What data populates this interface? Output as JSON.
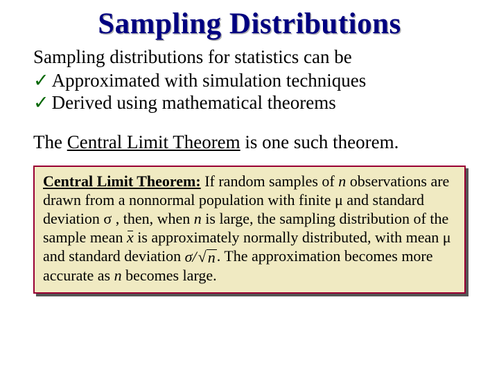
{
  "title": "Sampling Distributions",
  "intro": "Sampling distributions for statistics can be",
  "bullets": [
    {
      "text": "Approximated with simulation techniques"
    },
    {
      "text": "Derived using mathematical theorems"
    }
  ],
  "para_prefix": "The ",
  "para_underlined": "Central Limit Theorem",
  "para_suffix": " is one such theorem.",
  "theorem": {
    "label": "Central Limit Theorem:",
    "seg1": " If random samples of ",
    "n1": "n",
    "seg2": " observations are drawn from a nonnormal population with finite ",
    "mu1": "μ",
    "seg3": " and standard deviation ",
    "sigma1": "σ",
    "seg4": " , then, when ",
    "n2": "n ",
    "seg5": "is large, the sampling distribution of the sample mean ",
    "xbar": "x",
    "seg6": " is approximately normally distributed, with mean ",
    "mu2": "μ",
    "seg7": " and standard deviation ",
    "formula_sigma": "σ",
    "formula_slash": " / ",
    "formula_radical": "√",
    "formula_n": "n",
    "seg8": ". The approximation becomes more accurate as ",
    "n3": "n",
    "seg9": " becomes large."
  },
  "colors": {
    "title": "#000080",
    "check": "#006600",
    "box_bg": "#f0eac2",
    "box_border": "#990033",
    "box_shadow": "#555555"
  }
}
